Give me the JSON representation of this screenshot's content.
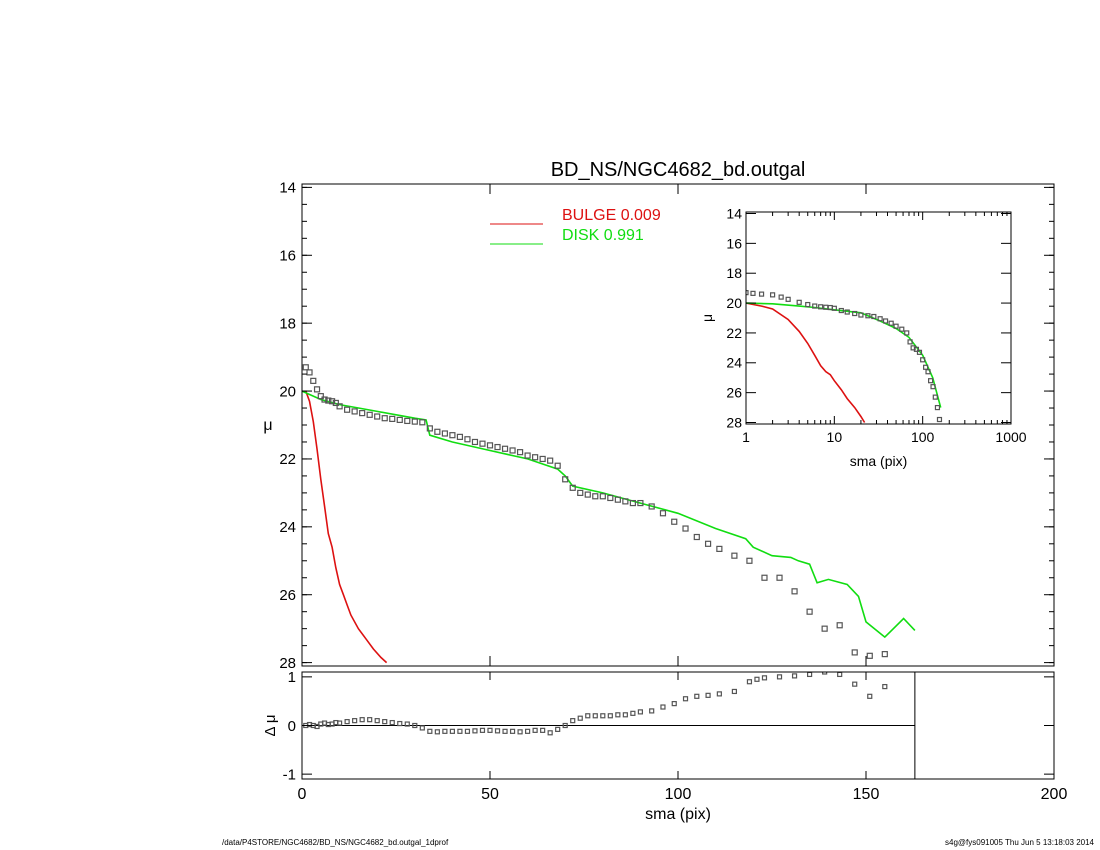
{
  "colors": {
    "bulge": "#dd1111",
    "disk": "#11dd11",
    "data": "#555555",
    "axes": "#000000"
  },
  "footer": {
    "left": "/data/P4STORE/NGC4682/BD_NS/NGC4682_bd.outgal_1dprof",
    "right": "s4g@fys091005  Thu Jun  5 13:18:03 2014"
  },
  "chart_data": [
    {
      "id": "main",
      "type": "line",
      "title": "BD_NS/NGC4682_bd.outgal",
      "xlabel": "",
      "ylabel": "μ",
      "xlim": [
        0,
        200
      ],
      "ylim": [
        28.1,
        13.9
      ],
      "yticks": [
        14,
        16,
        18,
        20,
        22,
        24,
        26,
        28
      ],
      "legend": {
        "placement": "top-center",
        "entries": [
          {
            "label": "BULGE",
            "value": "0.009",
            "color": "#dd1111"
          },
          {
            "label": "DISK",
            "value": "0.991",
            "color": "#11dd11"
          }
        ]
      },
      "series": [
        {
          "name": "BULGE",
          "kind": "line",
          "color": "#dd1111",
          "x": [
            1,
            2,
            3,
            4,
            5,
            6,
            7,
            8,
            9,
            10,
            11,
            12,
            13,
            15,
            17,
            19,
            21,
            22.5
          ],
          "y": [
            20.0,
            20.3,
            20.9,
            21.7,
            22.6,
            23.4,
            24.2,
            24.6,
            25.2,
            25.7,
            26.0,
            26.3,
            26.6,
            27.0,
            27.3,
            27.6,
            27.85,
            28.0
          ]
        },
        {
          "name": "DISK",
          "kind": "line",
          "color": "#11dd11",
          "x": [
            0,
            5,
            10,
            20,
            30,
            33,
            34,
            40,
            50,
            60,
            68,
            70,
            72,
            80,
            90,
            100,
            110,
            118,
            120,
            125,
            130,
            132,
            135,
            137,
            140,
            145,
            148,
            150,
            155,
            160,
            163
          ],
          "y": [
            20.0,
            20.25,
            20.4,
            20.6,
            20.8,
            20.85,
            21.3,
            21.5,
            21.75,
            22.0,
            22.3,
            22.5,
            22.8,
            23.0,
            23.3,
            23.6,
            24.05,
            24.35,
            24.6,
            24.85,
            24.9,
            25.0,
            25.1,
            25.65,
            25.55,
            25.7,
            26.05,
            26.8,
            27.25,
            26.7,
            27.05
          ]
        },
        {
          "name": "",
          "kind": "markers",
          "color": "#555555",
          "x": [
            1,
            2,
            3,
            4,
            5,
            6,
            7,
            8,
            9,
            10,
            12,
            14,
            16,
            18,
            20,
            22,
            24,
            26,
            28,
            30,
            32,
            34,
            36,
            38,
            40,
            42,
            44,
            46,
            48,
            50,
            52,
            54,
            56,
            58,
            60,
            62,
            64,
            66,
            68,
            70,
            72,
            74,
            76,
            78,
            80,
            82,
            84,
            86,
            88,
            90,
            93,
            96,
            99,
            102,
            105,
            108,
            111,
            115,
            119,
            123,
            127,
            131,
            135,
            139,
            143,
            147,
            151,
            155
          ],
          "y": [
            19.3,
            19.45,
            19.7,
            19.95,
            20.15,
            20.25,
            20.28,
            20.3,
            20.35,
            20.45,
            20.55,
            20.6,
            20.65,
            20.7,
            20.75,
            20.8,
            20.82,
            20.85,
            20.88,
            20.9,
            20.92,
            21.1,
            21.2,
            21.25,
            21.3,
            21.35,
            21.42,
            21.5,
            21.55,
            21.6,
            21.65,
            21.7,
            21.75,
            21.8,
            21.9,
            21.95,
            22.0,
            22.05,
            22.2,
            22.6,
            22.85,
            23.0,
            23.05,
            23.1,
            23.1,
            23.15,
            23.2,
            23.25,
            23.3,
            23.3,
            23.4,
            23.6,
            23.85,
            24.05,
            24.3,
            24.5,
            24.65,
            24.85,
            25.0,
            25.5,
            25.5,
            25.9,
            26.5,
            27.0,
            26.9,
            27.7,
            27.8,
            27.75
          ]
        }
      ]
    },
    {
      "id": "residual",
      "type": "scatter",
      "title": "",
      "xlabel": "sma (pix)",
      "ylabel": "Δ μ",
      "xlim": [
        0,
        200
      ],
      "ylim": [
        -1.1,
        1.1
      ],
      "xticks": [
        0,
        50,
        100,
        150,
        200
      ],
      "yticks": [
        -1,
        0,
        1
      ],
      "series": [
        {
          "name": "",
          "kind": "markers",
          "color": "#555555",
          "x": [
            1,
            2,
            3,
            4,
            5,
            6,
            7,
            8,
            9,
            10,
            12,
            14,
            16,
            18,
            20,
            22,
            24,
            26,
            28,
            30,
            32,
            34,
            36,
            38,
            40,
            42,
            44,
            46,
            48,
            50,
            52,
            54,
            56,
            58,
            60,
            62,
            64,
            66,
            68,
            70,
            72,
            74,
            76,
            78,
            80,
            82,
            84,
            86,
            88,
            90,
            93,
            96,
            99,
            102,
            105,
            108,
            111,
            115,
            119,
            121,
            123,
            127,
            131,
            135,
            139,
            143,
            147,
            151,
            155
          ],
          "y": [
            0.0,
            0.02,
            0.0,
            -0.02,
            0.03,
            0.05,
            0.02,
            0.03,
            0.06,
            0.05,
            0.08,
            0.1,
            0.12,
            0.12,
            0.1,
            0.08,
            0.06,
            0.04,
            0.03,
            0.0,
            -0.05,
            -0.12,
            -0.13,
            -0.12,
            -0.12,
            -0.12,
            -0.12,
            -0.11,
            -0.1,
            -0.1,
            -0.11,
            -0.12,
            -0.12,
            -0.13,
            -0.12,
            -0.1,
            -0.1,
            -0.15,
            -0.08,
            0.0,
            0.1,
            0.15,
            0.2,
            0.2,
            0.2,
            0.2,
            0.22,
            0.22,
            0.25,
            0.28,
            0.3,
            0.38,
            0.45,
            0.55,
            0.6,
            0.62,
            0.65,
            0.7,
            0.9,
            0.95,
            0.98,
            1.0,
            1.02,
            1.05,
            1.1,
            1.05,
            0.85,
            0.6,
            0.8
          ]
        }
      ],
      "reference_line": {
        "y": 0,
        "x_end": 163
      }
    },
    {
      "id": "inset",
      "type": "line",
      "title": "",
      "xlabel": "sma (pix)",
      "ylabel": "μ",
      "xscale": "log",
      "xlim": [
        1,
        1000
      ],
      "ylim": [
        28.1,
        13.9
      ],
      "xticks": [
        1,
        10,
        100,
        1000
      ],
      "yticks": [
        14,
        16,
        18,
        20,
        22,
        24,
        26,
        28
      ],
      "series": [
        {
          "name": "BULGE",
          "kind": "line",
          "color": "#dd1111",
          "x": [
            1,
            1.5,
            2,
            3,
            4,
            5,
            6,
            7,
            8,
            9,
            10,
            12,
            14,
            17,
            20,
            22
          ],
          "y": [
            20.0,
            20.2,
            20.4,
            21.1,
            21.9,
            22.7,
            23.5,
            24.2,
            24.6,
            24.8,
            25.2,
            25.8,
            26.4,
            27.0,
            27.6,
            28.0
          ]
        },
        {
          "name": "DISK",
          "kind": "line",
          "color": "#11dd11",
          "x": [
            1,
            2,
            4,
            6,
            10,
            20,
            33,
            50,
            70,
            100,
            130,
            160
          ],
          "y": [
            20.0,
            20.05,
            20.2,
            20.3,
            20.45,
            20.65,
            21.2,
            21.7,
            22.3,
            23.5,
            25.0,
            27.0
          ]
        },
        {
          "name": "",
          "kind": "markers",
          "color": "#555555",
          "x": [
            1,
            1.2,
            1.5,
            2,
            2.5,
            3,
            4,
            5,
            6,
            7,
            8,
            9,
            10,
            12,
            14,
            17,
            20,
            24,
            28,
            33,
            38,
            44,
            50,
            58,
            66,
            72,
            78,
            85,
            92,
            100,
            108,
            115,
            123,
            131,
            139,
            147,
            155
          ],
          "y": [
            19.3,
            19.35,
            19.4,
            19.45,
            19.6,
            19.75,
            19.95,
            20.1,
            20.2,
            20.25,
            20.28,
            20.3,
            20.35,
            20.5,
            20.6,
            20.7,
            20.8,
            20.85,
            20.9,
            21.05,
            21.2,
            21.35,
            21.55,
            21.75,
            22.0,
            22.6,
            23.0,
            23.1,
            23.3,
            23.8,
            24.3,
            24.6,
            25.2,
            25.6,
            26.3,
            27.0,
            27.8
          ]
        }
      ]
    }
  ]
}
